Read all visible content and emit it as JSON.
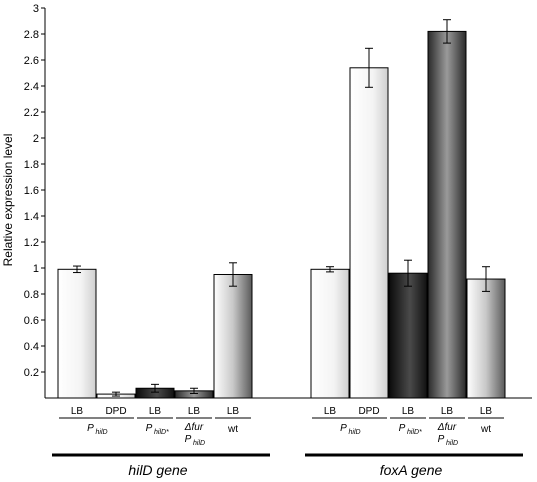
{
  "chart_data": {
    "type": "bar",
    "ylabel": "Relative expression level",
    "ylim": [
      0,
      3
    ],
    "yticks": [
      0.2,
      0.4,
      0.6,
      0.8,
      1,
      1.2,
      1.4,
      1.6,
      1.8,
      2,
      2.2,
      2.4,
      2.6,
      2.8,
      3
    ],
    "ytick_labels": [
      "0.2",
      "0.4",
      "0.6",
      "0.8",
      "1",
      "1.2",
      "1.4",
      "1.6",
      "1.8",
      "2",
      "2.2",
      "2.4",
      "2.6",
      "2.8",
      "3"
    ],
    "groups": [
      {
        "gene": "hilD",
        "gene_suffix": " gene",
        "bars": [
          {
            "condition": "LB",
            "value": 0.99,
            "error": 0.025,
            "fill": "white"
          },
          {
            "condition": "DPD",
            "value": 0.03,
            "error": 0.015,
            "fill": "white"
          },
          {
            "condition": "LB",
            "value": 0.075,
            "error": 0.03,
            "fill": "black"
          },
          {
            "condition": "LB",
            "value": 0.055,
            "error": 0.02,
            "fill": "darkgray"
          },
          {
            "condition": "LB",
            "value": 0.95,
            "error": 0.09,
            "fill": "gray"
          }
        ]
      },
      {
        "gene": "foxA",
        "gene_suffix": " gene",
        "bars": [
          {
            "condition": "LB",
            "value": 0.99,
            "error": 0.02,
            "fill": "white"
          },
          {
            "condition": "DPD",
            "value": 2.54,
            "error": 0.15,
            "fill": "white"
          },
          {
            "condition": "LB",
            "value": 0.96,
            "error": 0.1,
            "fill": "black"
          },
          {
            "condition": "LB",
            "value": 2.82,
            "error": 0.09,
            "fill": "darkgray"
          },
          {
            "condition": "LB",
            "value": 0.915,
            "error": 0.095,
            "fill": "gray"
          }
        ]
      }
    ],
    "strains": [
      {
        "main": "P",
        "sub": "hilD",
        "bars": [
          0,
          1
        ]
      },
      {
        "main": "P",
        "sub": "hilD*",
        "bars": [
          2
        ]
      },
      {
        "main": "Δfur",
        "line2_main": "P",
        "line2_sub": "hilD",
        "bars": [
          3
        ]
      },
      {
        "main": "wt",
        "sub": "",
        "bars": [
          4
        ]
      }
    ]
  }
}
